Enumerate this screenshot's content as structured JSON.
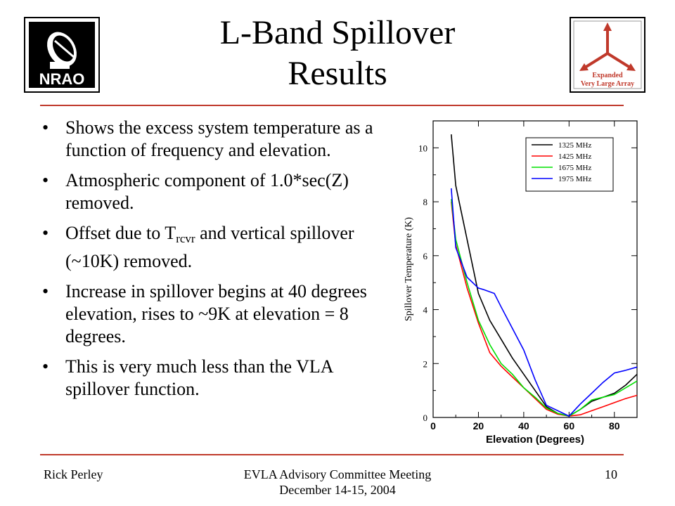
{
  "slide": {
    "title_line1": "L-Band Spillover",
    "title_line2": "Results",
    "logo_left_text": "NRAO",
    "logo_right_text": [
      "Expanded",
      "Very Large Array"
    ],
    "accent_color": "#c0392b",
    "bullets": [
      {
        "text": "Shows the excess system temperature as a function of frequency and elevation."
      },
      {
        "text": "Atmospheric component of 1.0*sec(Z) removed."
      },
      {
        "text_before": "Offset due to T",
        "subscript": "rcvr",
        "text_after": " and vertical spillover (~10K) removed."
      },
      {
        "text": "Increase in spillover begins at 40 degrees elevation, rises to ~9K at elevation = 8 degrees."
      },
      {
        "text": "This is very much less than the VLA spillover function."
      }
    ],
    "bullet_char": "•",
    "footer_left": "Rick Perley",
    "footer_center_line1": "EVLA Advisory Committee Meeting",
    "footer_center_line2": "December 14-15, 2004",
    "footer_right": "10"
  },
  "chart_data": {
    "type": "line",
    "title": "",
    "xlabel": "Elevation (Degrees)",
    "ylabel": "Spillover Temperature (K)",
    "xlim": [
      0,
      90
    ],
    "ylim": [
      0,
      11
    ],
    "xticks": [
      0,
      20,
      40,
      60,
      80
    ],
    "yticks": [
      0,
      2,
      4,
      6,
      8,
      10
    ],
    "grid": false,
    "legend_position": "top-right",
    "series": [
      {
        "name": "1325 MHz",
        "color": "#000000",
        "x": [
          8,
          10,
          15,
          20,
          25,
          30,
          35,
          40,
          45,
          50,
          55,
          60,
          65,
          70,
          75,
          80,
          85,
          90
        ],
        "y": [
          10.5,
          8.6,
          6.6,
          4.6,
          3.6,
          2.9,
          2.2,
          1.6,
          1.0,
          0.4,
          0.15,
          0.05,
          0.3,
          0.6,
          0.75,
          0.9,
          1.2,
          1.6
        ]
      },
      {
        "name": "1425 MHz",
        "color": "#ff0000",
        "x": [
          8,
          10,
          15,
          20,
          25,
          30,
          35,
          40,
          45,
          50,
          55,
          60,
          65,
          70,
          75,
          80,
          85,
          90
        ],
        "y": [
          8.0,
          6.4,
          4.8,
          3.5,
          2.4,
          1.9,
          1.5,
          1.1,
          0.7,
          0.3,
          0.12,
          0.05,
          0.1,
          0.25,
          0.4,
          0.55,
          0.7,
          0.82
        ]
      },
      {
        "name": "1675 MHz",
        "color": "#00e000",
        "x": [
          8,
          10,
          15,
          20,
          25,
          30,
          35,
          40,
          45,
          50,
          55,
          60,
          65,
          70,
          75,
          80,
          85,
          90
        ],
        "y": [
          8.1,
          6.6,
          5.0,
          3.6,
          2.7,
          2.0,
          1.6,
          1.1,
          0.75,
          0.35,
          0.15,
          0.05,
          0.3,
          0.65,
          0.75,
          0.85,
          1.1,
          1.35
        ]
      },
      {
        "name": "1975 MHz",
        "color": "#0000ff",
        "x": [
          8,
          10,
          15,
          20,
          22,
          27,
          30,
          35,
          40,
          45,
          50,
          55,
          60,
          65,
          70,
          75,
          80,
          85,
          90
        ],
        "y": [
          8.5,
          6.3,
          5.2,
          4.8,
          4.75,
          4.6,
          4.1,
          3.3,
          2.5,
          1.4,
          0.45,
          0.25,
          0.05,
          0.5,
          0.9,
          1.3,
          1.65,
          1.75,
          1.87
        ]
      }
    ]
  }
}
